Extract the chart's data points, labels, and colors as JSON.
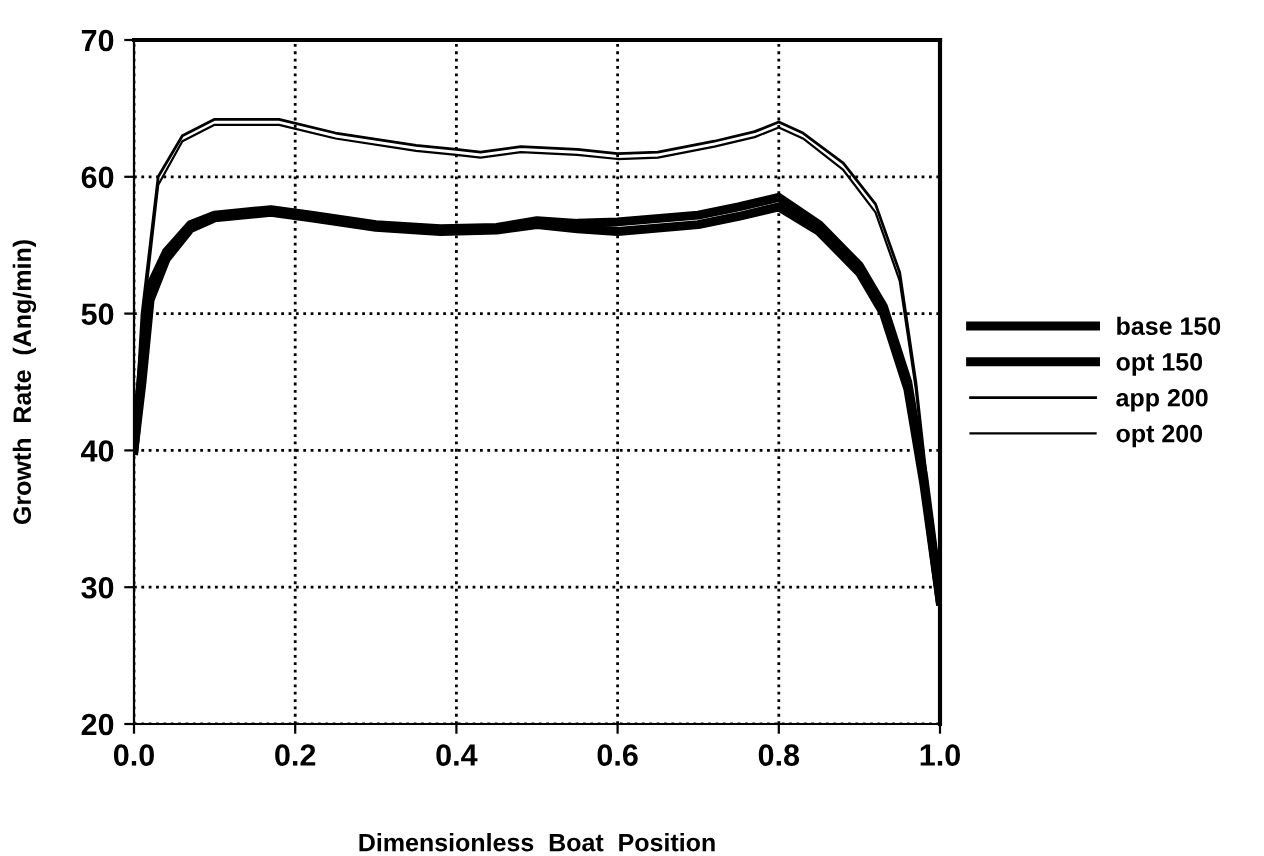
{
  "chart_data": {
    "type": "line",
    "xlabel": "Dimensionless  Boat  Position",
    "ylabel": "Growth  Rate  (Ang/min)",
    "xlim": [
      0.0,
      1.0
    ],
    "ylim": [
      20,
      70
    ],
    "xticks": [
      {
        "value": 0,
        "label": "0.0"
      },
      0.2,
      0.4,
      0.6,
      0.8,
      {
        "value": 1,
        "label": "1.0"
      }
    ],
    "yticks": [
      20,
      30,
      40,
      50,
      60,
      70
    ],
    "grid": true,
    "legend": "right",
    "marker": "none",
    "line_style": "solid",
    "series": [
      {
        "name": "base 150",
        "color": "#000000",
        "x": [
          0,
          0.01,
          0.02,
          0.04,
          0.07,
          0.1,
          0.17,
          0.22,
          0.3,
          0.38,
          0.45,
          0.5,
          0.55,
          0.6,
          0.7,
          0.75,
          0.8,
          0.85,
          0.9,
          0.93,
          0.96,
          0.98,
          1.0
        ],
        "values": [
          40,
          46,
          52,
          54.5,
          56.5,
          57.2,
          57.6,
          57.2,
          56.5,
          56.2,
          56.3,
          56.8,
          56.6,
          56.7,
          57.2,
          57.8,
          58.5,
          56.5,
          53.5,
          50.5,
          45,
          38,
          29
        ]
      },
      {
        "name": "opt 150",
        "color": "#000000",
        "x": [
          0,
          0.01,
          0.02,
          0.04,
          0.07,
          0.1,
          0.17,
          0.22,
          0.3,
          0.38,
          0.45,
          0.5,
          0.55,
          0.6,
          0.7,
          0.75,
          0.8,
          0.85,
          0.9,
          0.93,
          0.96,
          0.98,
          1.0
        ],
        "values": [
          40,
          45,
          51,
          54,
          56.2,
          57,
          57.4,
          57,
          56.3,
          56,
          56.1,
          56.5,
          56.2,
          56,
          56.5,
          57.1,
          57.8,
          56,
          53,
          50,
          44.5,
          37.5,
          29
        ]
      },
      {
        "name": "app 200",
        "color": "#000000",
        "x": [
          0,
          0.01,
          0.03,
          0.06,
          0.1,
          0.18,
          0.25,
          0.35,
          0.4,
          0.43,
          0.48,
          0.55,
          0.6,
          0.65,
          0.72,
          0.77,
          0.8,
          0.83,
          0.88,
          0.92,
          0.95,
          0.97,
          0.985,
          1.0
        ],
        "values": [
          40,
          50,
          60,
          63,
          64.2,
          64.2,
          63.2,
          62.3,
          62,
          61.8,
          62.2,
          62,
          61.7,
          61.8,
          62.6,
          63.3,
          64,
          63.2,
          61,
          58,
          53,
          45,
          37,
          30
        ]
      },
      {
        "name": "opt 200",
        "color": "#000000",
        "x": [
          0,
          0.01,
          0.03,
          0.06,
          0.1,
          0.18,
          0.25,
          0.35,
          0.4,
          0.43,
          0.48,
          0.55,
          0.6,
          0.65,
          0.72,
          0.77,
          0.8,
          0.83,
          0.88,
          0.92,
          0.95,
          0.97,
          0.985,
          1.0
        ],
        "values": [
          40,
          49,
          59.4,
          62.6,
          63.8,
          63.8,
          62.8,
          61.9,
          61.6,
          61.4,
          61.8,
          61.6,
          61.3,
          61.4,
          62.2,
          62.9,
          63.6,
          62.8,
          60.5,
          57.4,
          52.4,
          44.5,
          36.5,
          29.8
        ]
      }
    ]
  }
}
